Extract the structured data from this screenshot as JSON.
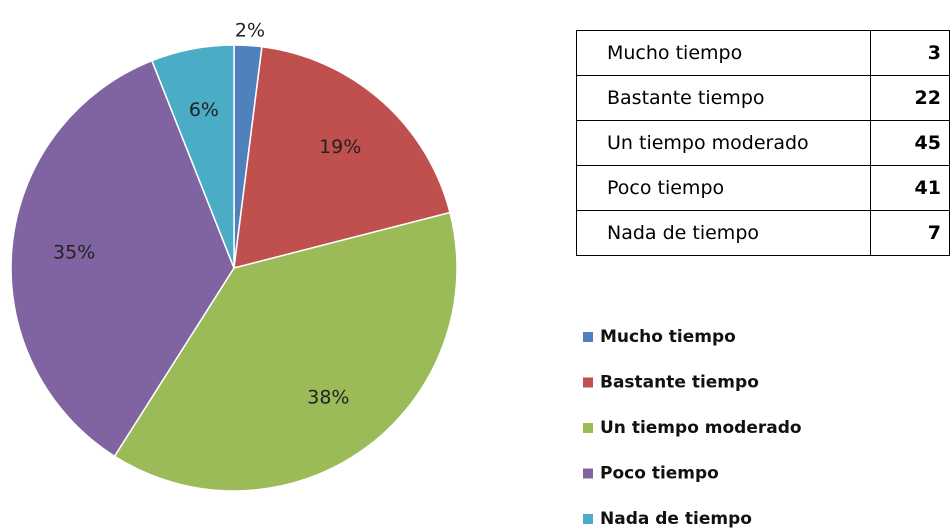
{
  "chart_data": {
    "type": "pie",
    "categories": [
      "Mucho tiempo",
      "Bastante tiempo",
      "Un tiempo moderado",
      "Poco tiempo",
      "Nada de tiempo"
    ],
    "values": [
      2,
      19,
      38,
      35,
      6
    ],
    "value_labels": [
      "2%",
      "19%",
      "38%",
      "35%",
      "6%"
    ],
    "colors": [
      "#4f81bd",
      "#c0504d",
      "#9bbb59",
      "#8064a2",
      "#4bacc6"
    ],
    "legend": "right"
  },
  "table": {
    "rows": [
      [
        "Mucho tiempo",
        3
      ],
      [
        "Bastante tiempo",
        22
      ],
      [
        "Un tiempo moderado",
        45
      ],
      [
        "Poco tiempo",
        41
      ],
      [
        "Nada de tiempo",
        7
      ]
    ]
  }
}
